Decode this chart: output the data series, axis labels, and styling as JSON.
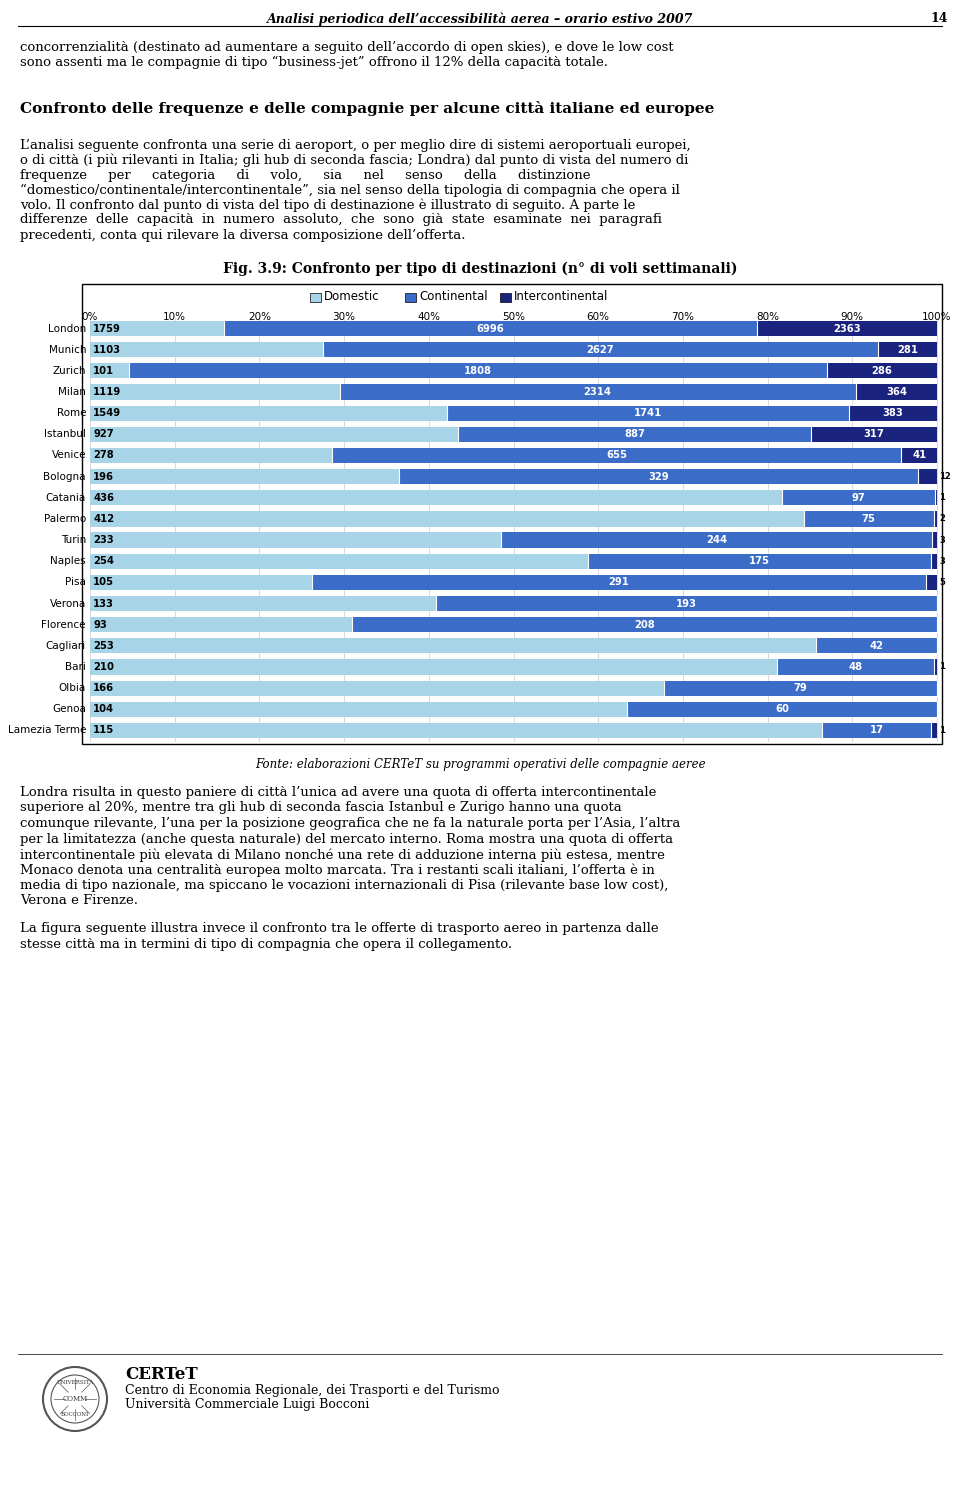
{
  "title": "Fig. 3.9: Confronto per tipo di destinazioni (n° di voli settimanali)",
  "header_title": "Analisi periodica dell’accessibilità aerea – orario estivo 2007",
  "header_page": "14",
  "source": "Fonte: elaborazioni CERTeT su programmi operativi delle compagnie aeree",
  "legend_labels": [
    "Domestic",
    "Continental",
    "Intercontinental"
  ],
  "colors": {
    "domestic": "#A8D4E8",
    "continental": "#3B6CC8",
    "intercontinental": "#1A237E",
    "background": "#FFFFFF"
  },
  "cities": [
    "London",
    "Munich",
    "Zurich",
    "Milan",
    "Rome",
    "Istanbul",
    "Venice",
    "Bologna",
    "Catania",
    "Palermo",
    "Turin",
    "Naples",
    "Pisa",
    "Verona",
    "Florence",
    "Cagliari",
    "Bari",
    "Olbia",
    "Genoa",
    "Lamezia Terme"
  ],
  "domestic": [
    1759,
    1103,
    101,
    1119,
    1549,
    927,
    278,
    196,
    436,
    412,
    233,
    254,
    105,
    133,
    93,
    253,
    210,
    166,
    104,
    115
  ],
  "continental": [
    6996,
    2627,
    1808,
    2314,
    1741,
    887,
    655,
    329,
    97,
    75,
    244,
    175,
    291,
    193,
    208,
    42,
    48,
    79,
    60,
    17
  ],
  "intercontinental": [
    2363,
    281,
    286,
    364,
    383,
    317,
    41,
    12,
    1,
    2,
    3,
    3,
    5,
    0,
    0,
    0,
    1,
    0,
    0,
    1
  ],
  "xtick_labels": [
    "0%",
    "10%",
    "20%",
    "30%",
    "40%",
    "50%",
    "60%",
    "70%",
    "80%",
    "90%",
    "100%"
  ],
  "header_line1": "concorrenzialità (destinato ad aumentare a seguito dell’accordo di open skies), e dove le low cost",
  "header_line2": "sono assenti ma le compagnie di tipo “business-jet” offrono il 12% della capacità totale.",
  "section_title": "Confronto delle frequenze e delle compagnie per alcune città italiane ed europee",
  "body_text2": [
    "L’analisi seguente confronta una serie di aeroport, o per meglio dire di sistemi aeroportuali europei,",
    "o di città (i più rilevanti in Italia; gli hub di seconda fascia; Londra) dal punto di vista del numero di",
    "frequenze     per     categoria     di     volo,     sia     nel     senso     della     distinzione",
    "“domestico/continentale/intercontinentale”, sia nel senso della tipologia di compagnia che opera il",
    "volo. Il confronto dal punto di vista del tipo di destinazione è illustrato di seguito. A parte le",
    "differenze  delle  capacità  in  numero  assoluto,  che  sono  già  state  esaminate  nei  paragrafi",
    "precedenti, conta qui rilevare la diversa composizione dell’offerta."
  ],
  "body_text3": [
    "Londra risulta in questo paniere di città l’unica ad avere una quota di offerta intercontinentale",
    "superiore al 20%, mentre tra gli hub di seconda fascia Istanbul e Zurigo hanno una quota",
    "comunque rilevante, l’una per la posizione geografica che ne fa la naturale porta per l’Asia, l’altra",
    "per la limitatezza (anche questa naturale) del mercato interno. Roma mostra una quota di offerta",
    "intercontinentale più elevata di Milano nonché una rete di adduzione interna più estesa, mentre",
    "Monaco denota una centralità europea molto marcata. Tra i restanti scali italiani, l’offerta è in",
    "media di tipo nazionale, ma spiccano le vocazioni internazionali di Pisa (rilevante base low cost),",
    "Verona e Firenze."
  ],
  "body_text4": [
    "La figura seguente illustra invece il confronto tra le offerte di trasporto aereo in partenza dalle",
    "stesse città ma in termini di tipo di compagnia che opera il collegamento."
  ],
  "footer_org": "CERTeT",
  "footer_line1": "Centro di Economia Regionale, dei Trasporti e del Turismo",
  "footer_line2": "Università Commerciale Luigi Bocconi"
}
